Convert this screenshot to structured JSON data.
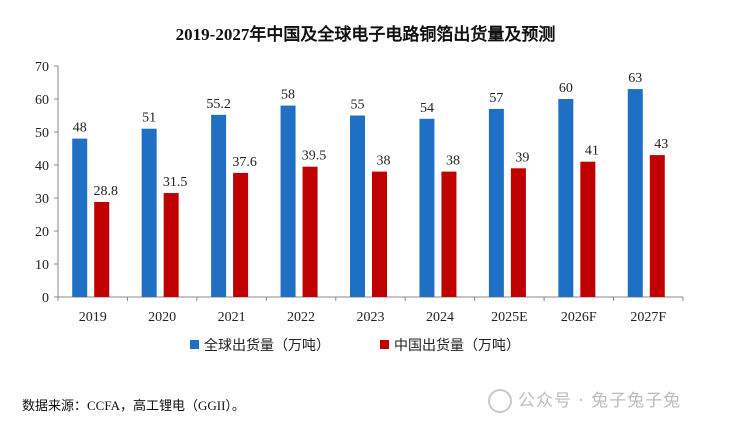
{
  "chart_data": {
    "type": "bar",
    "title": "2019-2027年中国及全球电子电路铜箔出货量及预测",
    "categories": [
      "2019",
      "2020",
      "2021",
      "2022",
      "2023",
      "2024",
      "2025E",
      "2026F",
      "2027F"
    ],
    "series": [
      {
        "name": "全球出货量（万吨）",
        "color": "#1f6fc5",
        "values": [
          48,
          51,
          55.2,
          58,
          55,
          54,
          57,
          60,
          63
        ],
        "labels": [
          "48",
          "51",
          "55.2",
          "58",
          "55",
          "54",
          "57",
          "60",
          "63"
        ]
      },
      {
        "name": "中国出货量（万吨）",
        "color": "#c00000",
        "values": [
          28.8,
          31.5,
          37.6,
          39.5,
          38,
          38,
          39,
          41,
          43
        ],
        "labels": [
          "28.8",
          "31.5",
          "37.6",
          "39.5",
          "38",
          "38",
          "39",
          "41",
          "43"
        ]
      }
    ],
    "ylim": [
      0,
      70
    ],
    "yticks": [
      0,
      10,
      20,
      30,
      40,
      50,
      60,
      70
    ],
    "xlabel": "",
    "ylabel": "",
    "grid": false,
    "legend": "bottom"
  },
  "source_note": "数据来源：CCFA，高工锂电（GGII）。",
  "watermark": "公众号 · 兔子兔子兔"
}
